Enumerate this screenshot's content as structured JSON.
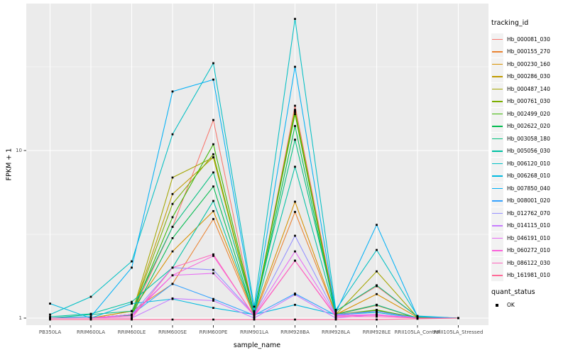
{
  "chart_data": {
    "type": "line",
    "title": "",
    "xlabel": "sample_name",
    "ylabel": "FPKM + 1",
    "y_scale": "log10",
    "y_ticks": [
      "1",
      "10"
    ],
    "y_tick_values": [
      1,
      10
    ],
    "y_minor_values": [
      3.1623,
      31.6228
    ],
    "grid": true,
    "categories": [
      "PB350LA",
      "RRIM600LA",
      "RRIM600LE",
      "RRIM600SE",
      "RRIM600PE",
      "RRIM901LA",
      "RRIM928BA",
      "RRIM928LA",
      "RRIM928LE",
      "RRII105LA_Control",
      "RRII105LA_Stressed"
    ],
    "legend": {
      "title": "tracking_id",
      "position": "right"
    },
    "quant_legend": {
      "title": "quant_status",
      "label": "OK",
      "marker": "black-square"
    },
    "theme": {
      "panel_bg": "#EBEBEB",
      "grid_color": "#FFFFFF",
      "tick_color": "#333333",
      "tick_label_color": "#4D4D4D",
      "point_color": "#000000"
    },
    "series": [
      {
        "name": "Hb_000081_030",
        "color": "#F8766D",
        "values": [
          1.0,
          1.0,
          1.05,
          3.5,
          15.2,
          1.05,
          18.5,
          1.1,
          1.55,
          1.02,
          1.0
        ]
      },
      {
        "name": "Hb_000155_270",
        "color": "#EA8331",
        "values": [
          1.0,
          1.0,
          1.1,
          1.6,
          3.9,
          1.03,
          4.3,
          1.05,
          1.19,
          1.0,
          1.0
        ]
      },
      {
        "name": "Hb_000230_160",
        "color": "#D89000",
        "values": [
          1.0,
          1.0,
          1.1,
          2.5,
          4.35,
          1.05,
          4.95,
          1.05,
          1.39,
          1.01,
          1.0
        ]
      },
      {
        "name": "Hb_000286_030",
        "color": "#C09B00",
        "values": [
          1.0,
          1.0,
          1.05,
          5.5,
          9.1,
          1.05,
          17.0,
          1.06,
          1.2,
          1.0,
          1.0
        ]
      },
      {
        "name": "Hb_000487_140",
        "color": "#A3A500",
        "values": [
          1.0,
          1.0,
          1.05,
          6.9,
          9.1,
          1.06,
          17.3,
          1.05,
          1.9,
          1.01,
          1.0
        ]
      },
      {
        "name": "Hb_000761_030",
        "color": "#7CAE00",
        "values": [
          1.0,
          1.0,
          1.05,
          4.8,
          9.5,
          1.05,
          17.5,
          1.05,
          1.12,
          1.0,
          1.0
        ]
      },
      {
        "name": "Hb_002499_020",
        "color": "#39B600",
        "values": [
          1.0,
          1.0,
          1.05,
          4.0,
          10.9,
          1.07,
          16.5,
          1.05,
          1.11,
          1.01,
          1.0
        ]
      },
      {
        "name": "Hb_002622_020",
        "color": "#00BB4E",
        "values": [
          1.0,
          1.0,
          1.04,
          3.0,
          6.1,
          1.04,
          14.0,
          1.04,
          1.1,
          1.0,
          1.0
        ]
      },
      {
        "name": "Hb_003058_180",
        "color": "#00BF7D",
        "values": [
          1.0,
          1.05,
          1.1,
          3.5,
          7.4,
          1.08,
          11.6,
          1.1,
          1.57,
          1.02,
          1.0
        ]
      },
      {
        "name": "Hb_005056_030",
        "color": "#00C1A3",
        "values": [
          1.02,
          1.06,
          1.25,
          2.0,
          5.0,
          1.05,
          8.0,
          1.05,
          1.2,
          1.0,
          1.0
        ]
      },
      {
        "name": "Hb_006120_010",
        "color": "#00BFC4",
        "values": [
          1.05,
          1.34,
          2.18,
          12.5,
          33.2,
          1.17,
          61.0,
          1.12,
          2.55,
          1.03,
          1.0
        ]
      },
      {
        "name": "Hb_006268_010",
        "color": "#00BAE0",
        "values": [
          1.22,
          1.0,
          1.22,
          1.3,
          1.15,
          1.05,
          1.2,
          1.05,
          1.08,
          1.0,
          1.0
        ]
      },
      {
        "name": "Hb_007850_040",
        "color": "#00B0F6",
        "values": [
          1.0,
          1.02,
          2.0,
          22.5,
          26.5,
          1.1,
          31.6,
          1.08,
          3.6,
          1.02,
          1.0
        ]
      },
      {
        "name": "Hb_008001_020",
        "color": "#35A2FF",
        "values": [
          1.0,
          1.0,
          1.05,
          1.6,
          1.3,
          1.04,
          1.4,
          1.04,
          1.1,
          1.0,
          1.0
        ]
      },
      {
        "name": "Hb_012762_070",
        "color": "#9590FF",
        "values": [
          1.0,
          1.0,
          1.05,
          2.0,
          1.94,
          1.05,
          3.1,
          1.05,
          1.1,
          1.0,
          1.0
        ]
      },
      {
        "name": "Hb_014115_010",
        "color": "#C77CFF",
        "values": [
          1.0,
          1.0,
          1.0,
          1.31,
          1.27,
          1.0,
          1.38,
          1.0,
          1.05,
          1.0,
          1.0
        ]
      },
      {
        "name": "Hb_046191_010",
        "color": "#E76BF3",
        "values": [
          1.0,
          1.0,
          1.05,
          1.8,
          1.85,
          1.04,
          2.5,
          1.04,
          1.05,
          1.0,
          1.0
        ]
      },
      {
        "name": "Hb_060272_010",
        "color": "#FA62DB",
        "values": [
          1.0,
          1.0,
          1.03,
          1.8,
          2.35,
          1.03,
          2.2,
          1.03,
          1.04,
          1.0,
          1.0
        ]
      },
      {
        "name": "Hb_086122_030",
        "color": "#FF62BC",
        "values": [
          1.0,
          1.0,
          1.0,
          2.0,
          2.4,
          1.02,
          2.2,
          1.02,
          1.02,
          1.0,
          1.0
        ]
      },
      {
        "name": "Hb_161981_010",
        "color": "#FF6A98",
        "values": [
          0.98,
          0.98,
          0.98,
          0.98,
          0.98,
          0.98,
          0.98,
          0.98,
          0.98,
          0.99,
          1.0
        ]
      }
    ]
  }
}
